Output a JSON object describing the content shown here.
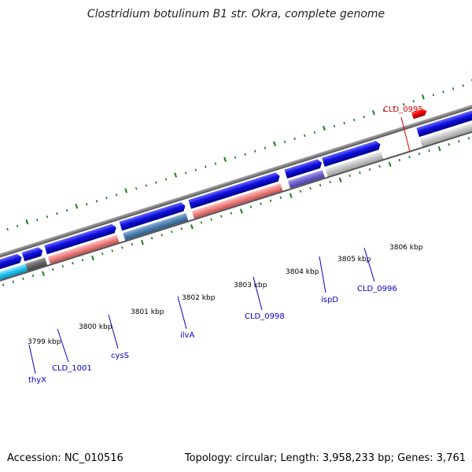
{
  "title": "Clostridium botulinum B1 str. Okra, complete genome",
  "footer": {
    "accession": "Accession: NC_010516",
    "summary": "Topology: circular; Length: 3,958,233 bp; Genes: 3,761"
  },
  "scale": {
    "ticks": [
      {
        "label": "3799 kbp"
      },
      {
        "label": "3800 kbp"
      },
      {
        "label": "3801 kbp"
      },
      {
        "label": "3802 kbp"
      },
      {
        "label": "3803 kbp"
      },
      {
        "label": "3804 kbp"
      },
      {
        "label": "3805 kbp"
      },
      {
        "label": "3806 kbp"
      }
    ]
  },
  "gene_labels": [
    {
      "name": "thyX",
      "color": "#0000cc"
    },
    {
      "name": "CLD_1001",
      "color": "#0000cc"
    },
    {
      "name": "cysS",
      "color": "#0000cc"
    },
    {
      "name": "ilvA",
      "color": "#0000cc"
    },
    {
      "name": "CLD_0998",
      "color": "#0000cc"
    },
    {
      "name": "ispD",
      "color": "#0000cc"
    },
    {
      "name": "CLD_0996",
      "color": "#0000cc"
    },
    {
      "name": "CLD_0995",
      "color": "#dd0000"
    }
  ],
  "colors": {
    "forward_cds": "#1010e0",
    "reverse_cds_highlight": "#e00000",
    "backbone": "#808080",
    "tick": "#1a7a1a"
  }
}
